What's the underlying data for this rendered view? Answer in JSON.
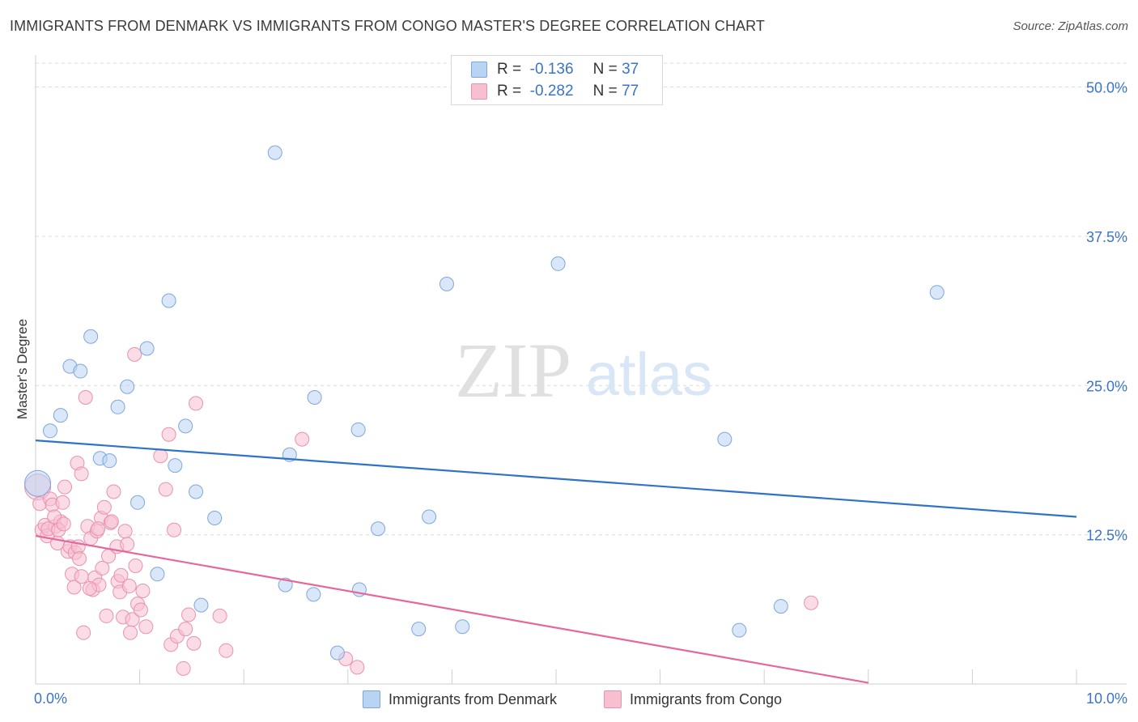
{
  "header": {
    "title": "IMMIGRANTS FROM DENMARK VS IMMIGRANTS FROM CONGO MASTER'S DEGREE CORRELATION CHART",
    "source": "Source: ZipAtlas.com"
  },
  "watermark": {
    "zip": "ZIP",
    "atlas": "atlas"
  },
  "legend": {
    "denmark": {
      "r_label": "R =",
      "r_value": "-0.136",
      "n_label": "N =",
      "n_value": "37"
    },
    "congo": {
      "r_label": "R =",
      "r_value": "-0.282",
      "n_label": "N =",
      "n_value": "77"
    }
  },
  "colors": {
    "denmark_fill": "#b9d3f3",
    "denmark_stroke": "#7ea7dc",
    "denmark_line": "#2f73c8",
    "congo_fill": "#f7c0d1",
    "congo_stroke": "#e992ad",
    "congo_line": "#e5689a",
    "axis_label": "#3a74c9",
    "grid": "#dcdcdc"
  },
  "chart_data": {
    "type": "scatter",
    "title": "IMMIGRANTS FROM DENMARK VS IMMIGRANTS FROM CONGO MASTER'S DEGREE CORRELATION CHART",
    "xlabel": "",
    "ylabel": "Master's Degree",
    "xlim": [
      0,
      10
    ],
    "ylim": [
      0,
      52
    ],
    "x_tick_labels": [
      "0.0%",
      "10.0%"
    ],
    "y_tick_labels": [
      "12.5%",
      "25.0%",
      "37.5%",
      "50.0%"
    ],
    "y_ticks": [
      12.5,
      25.0,
      37.5,
      50.0
    ],
    "grid": true,
    "legend_position": "bottom",
    "series": [
      {
        "name": "Immigrants from Denmark",
        "color": "#b9d3f3",
        "R": -0.136,
        "N": 37,
        "trend": {
          "x": [
            0,
            10
          ],
          "y": [
            20.4,
            14.0
          ]
        },
        "points": [
          {
            "x": 0.02,
            "y": 16.8,
            "big": true
          },
          {
            "x": 0.14,
            "y": 21.2
          },
          {
            "x": 0.24,
            "y": 22.5
          },
          {
            "x": 0.33,
            "y": 26.6
          },
          {
            "x": 0.43,
            "y": 26.2
          },
          {
            "x": 0.53,
            "y": 29.1
          },
          {
            "x": 0.62,
            "y": 18.9
          },
          {
            "x": 0.71,
            "y": 18.7
          },
          {
            "x": 0.79,
            "y": 23.2
          },
          {
            "x": 0.88,
            "y": 24.9
          },
          {
            "x": 0.98,
            "y": 15.2
          },
          {
            "x": 1.07,
            "y": 28.1
          },
          {
            "x": 1.17,
            "y": 9.2
          },
          {
            "x": 1.28,
            "y": 32.1
          },
          {
            "x": 1.34,
            "y": 18.3
          },
          {
            "x": 1.44,
            "y": 21.6
          },
          {
            "x": 1.54,
            "y": 16.1
          },
          {
            "x": 1.59,
            "y": 6.6
          },
          {
            "x": 1.72,
            "y": 13.9
          },
          {
            "x": 2.3,
            "y": 44.5
          },
          {
            "x": 2.4,
            "y": 8.3
          },
          {
            "x": 2.44,
            "y": 19.2
          },
          {
            "x": 2.67,
            "y": 7.5
          },
          {
            "x": 2.9,
            "y": 2.6
          },
          {
            "x": 2.68,
            "y": 24.0
          },
          {
            "x": 3.11,
            "y": 7.9
          },
          {
            "x": 3.1,
            "y": 21.3
          },
          {
            "x": 3.29,
            "y": 13.0
          },
          {
            "x": 3.68,
            "y": 4.6
          },
          {
            "x": 3.78,
            "y": 14.0
          },
          {
            "x": 3.95,
            "y": 33.5
          },
          {
            "x": 4.1,
            "y": 4.8
          },
          {
            "x": 5.02,
            "y": 35.2
          },
          {
            "x": 6.62,
            "y": 20.5
          },
          {
            "x": 6.76,
            "y": 4.5
          },
          {
            "x": 7.16,
            "y": 6.5
          },
          {
            "x": 8.66,
            "y": 32.8
          }
        ]
      },
      {
        "name": "Immigrants from Congo",
        "color": "#f7c0d1",
        "R": -0.282,
        "N": 77,
        "trend": {
          "x": [
            0,
            8.0
          ],
          "y": [
            12.4,
            0.1
          ]
        },
        "points": [
          {
            "x": 0.02,
            "y": 16.5,
            "big": true
          },
          {
            "x": 0.04,
            "y": 15.1
          },
          {
            "x": 0.06,
            "y": 12.9
          },
          {
            "x": 0.09,
            "y": 13.3
          },
          {
            "x": 0.11,
            "y": 12.4
          },
          {
            "x": 0.14,
            "y": 15.5
          },
          {
            "x": 0.16,
            "y": 15.0
          },
          {
            "x": 0.19,
            "y": 13.2
          },
          {
            "x": 0.21,
            "y": 11.8
          },
          {
            "x": 0.24,
            "y": 13.6
          },
          {
            "x": 0.26,
            "y": 15.2
          },
          {
            "x": 0.28,
            "y": 16.5
          },
          {
            "x": 0.31,
            "y": 11.1
          },
          {
            "x": 0.33,
            "y": 11.5
          },
          {
            "x": 0.35,
            "y": 9.2
          },
          {
            "x": 0.37,
            "y": 8.1
          },
          {
            "x": 0.38,
            "y": 11.0
          },
          {
            "x": 0.4,
            "y": 18.5
          },
          {
            "x": 0.41,
            "y": 11.5
          },
          {
            "x": 0.42,
            "y": 10.5
          },
          {
            "x": 0.44,
            "y": 17.6
          },
          {
            "x": 0.46,
            "y": 4.3
          },
          {
            "x": 0.44,
            "y": 9.0
          },
          {
            "x": 0.48,
            "y": 24.0
          },
          {
            "x": 0.5,
            "y": 13.2
          },
          {
            "x": 0.53,
            "y": 12.2
          },
          {
            "x": 0.55,
            "y": 7.9
          },
          {
            "x": 0.57,
            "y": 8.9
          },
          {
            "x": 0.59,
            "y": 12.8
          },
          {
            "x": 0.61,
            "y": 8.3
          },
          {
            "x": 0.63,
            "y": 13.9
          },
          {
            "x": 0.64,
            "y": 9.7
          },
          {
            "x": 0.66,
            "y": 14.8
          },
          {
            "x": 0.68,
            "y": 5.7
          },
          {
            "x": 0.7,
            "y": 10.7
          },
          {
            "x": 0.72,
            "y": 13.5
          },
          {
            "x": 0.73,
            "y": 13.6
          },
          {
            "x": 0.75,
            "y": 16.1
          },
          {
            "x": 0.78,
            "y": 11.5
          },
          {
            "x": 0.79,
            "y": 8.6
          },
          {
            "x": 0.81,
            "y": 7.7
          },
          {
            "x": 0.82,
            "y": 9.1
          },
          {
            "x": 0.84,
            "y": 5.6
          },
          {
            "x": 0.86,
            "y": 12.8
          },
          {
            "x": 0.88,
            "y": 11.7
          },
          {
            "x": 0.9,
            "y": 8.2
          },
          {
            "x": 0.91,
            "y": 4.3
          },
          {
            "x": 0.93,
            "y": 5.4
          },
          {
            "x": 0.95,
            "y": 27.6
          },
          {
            "x": 0.96,
            "y": 9.9
          },
          {
            "x": 0.98,
            "y": 6.7
          },
          {
            "x": 1.01,
            "y": 6.2
          },
          {
            "x": 1.03,
            "y": 7.8
          },
          {
            "x": 1.06,
            "y": 4.8
          },
          {
            "x": 1.2,
            "y": 19.1
          },
          {
            "x": 1.25,
            "y": 16.3
          },
          {
            "x": 1.28,
            "y": 20.9
          },
          {
            "x": 1.3,
            "y": 3.3
          },
          {
            "x": 1.33,
            "y": 12.9
          },
          {
            "x": 1.36,
            "y": 4.0
          },
          {
            "x": 1.42,
            "y": 1.3
          },
          {
            "x": 1.44,
            "y": 4.6
          },
          {
            "x": 1.47,
            "y": 5.8
          },
          {
            "x": 1.52,
            "y": 3.4
          },
          {
            "x": 1.54,
            "y": 23.5
          },
          {
            "x": 1.77,
            "y": 5.7
          },
          {
            "x": 1.83,
            "y": 2.8
          },
          {
            "x": 2.56,
            "y": 20.5
          },
          {
            "x": 2.98,
            "y": 2.1
          },
          {
            "x": 3.09,
            "y": 1.4
          },
          {
            "x": 7.45,
            "y": 6.8
          },
          {
            "x": 0.12,
            "y": 13.0
          },
          {
            "x": 0.18,
            "y": 14.0
          },
          {
            "x": 0.22,
            "y": 12.9
          },
          {
            "x": 0.27,
            "y": 13.4
          },
          {
            "x": 0.52,
            "y": 8.0
          },
          {
            "x": 0.6,
            "y": 13.0
          }
        ]
      }
    ]
  }
}
